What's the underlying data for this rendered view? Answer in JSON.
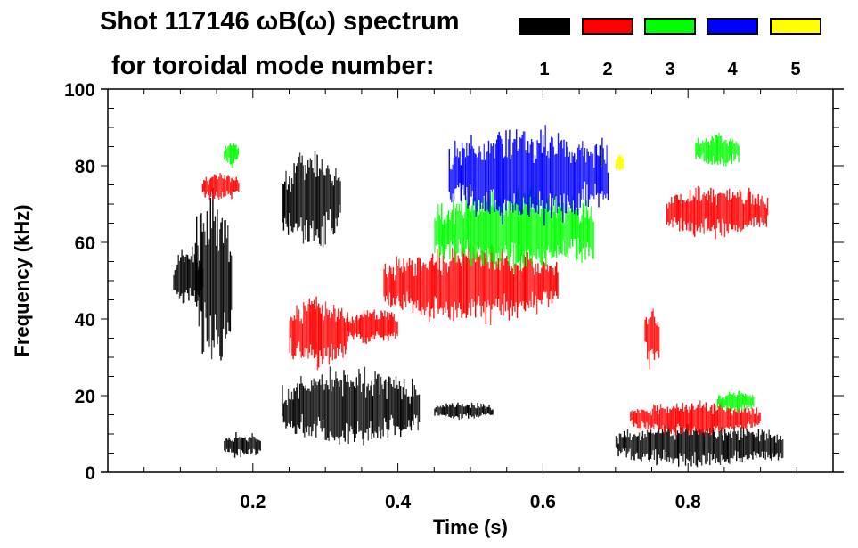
{
  "chart_data": {
    "type": "heatmap",
    "title": "Shot 117146 ωB(ω) spectrum",
    "subtitle": "for toroidal mode number:",
    "xlabel": "Time (s)",
    "ylabel": "Frequency (kHz)",
    "xlim": [
      0.0,
      1.0
    ],
    "ylim": [
      0,
      100
    ],
    "x_ticks": [
      0.2,
      0.4,
      0.6,
      0.8
    ],
    "x_tick_labels": [
      "0.2",
      "0.4",
      "0.6",
      "0.8"
    ],
    "x_minor_step": 0.05,
    "y_ticks": [
      0,
      20,
      40,
      60,
      80,
      100
    ],
    "y_tick_labels": [
      "0",
      "20",
      "40",
      "60",
      "80",
      "100"
    ],
    "y_minor_step": 5,
    "grid": false,
    "legend": {
      "placement": "top-right",
      "entries": [
        {
          "mode": "1",
          "color": "#000000"
        },
        {
          "mode": "2",
          "color": "#ff0000"
        },
        {
          "mode": "3",
          "color": "#00ff00"
        },
        {
          "mode": "4",
          "color": "#0000ff"
        },
        {
          "mode": "5",
          "color": "#ffff00"
        }
      ]
    },
    "series": [
      {
        "name": "n=1",
        "color": "#000000",
        "regions": [
          {
            "t": [
              0.09,
              0.13
            ],
            "f": [
              44,
              58
            ]
          },
          {
            "t": [
              0.12,
              0.17
            ],
            "f": [
              30,
              72
            ]
          },
          {
            "t": [
              0.16,
              0.21
            ],
            "f": [
              4,
              10
            ]
          },
          {
            "t": [
              0.24,
              0.32
            ],
            "f": [
              60,
              82
            ]
          },
          {
            "t": [
              0.24,
              0.43
            ],
            "f": [
              8,
              26
            ]
          },
          {
            "t": [
              0.7,
              0.93
            ],
            "f": [
              2,
              12
            ]
          },
          {
            "t": [
              0.45,
              0.53
            ],
            "f": [
              14,
              18
            ]
          }
        ]
      },
      {
        "name": "n=2",
        "color": "#ff0000",
        "regions": [
          {
            "t": [
              0.13,
              0.18
            ],
            "f": [
              71,
              78
            ]
          },
          {
            "t": [
              0.25,
              0.33
            ],
            "f": [
              28,
              45
            ]
          },
          {
            "t": [
              0.33,
              0.4
            ],
            "f": [
              34,
              42
            ]
          },
          {
            "t": [
              0.38,
              0.62
            ],
            "f": [
              40,
              58
            ]
          },
          {
            "t": [
              0.72,
              0.9
            ],
            "f": [
              10,
              18
            ]
          },
          {
            "t": [
              0.74,
              0.76
            ],
            "f": [
              28,
              43
            ]
          },
          {
            "t": [
              0.77,
              0.91
            ],
            "f": [
              62,
              74
            ]
          }
        ]
      },
      {
        "name": "n=3",
        "color": "#00ff00",
        "regions": [
          {
            "t": [
              0.16,
              0.18
            ],
            "f": [
              80,
              86
            ]
          },
          {
            "t": [
              0.45,
              0.67
            ],
            "f": [
              53,
              73
            ]
          },
          {
            "t": [
              0.81,
              0.87
            ],
            "f": [
              80,
              88
            ]
          },
          {
            "t": [
              0.84,
              0.89
            ],
            "f": [
              16,
              21
            ]
          }
        ]
      },
      {
        "name": "n=4",
        "color": "#0000ff",
        "regions": [
          {
            "t": [
              0.47,
              0.69
            ],
            "f": [
              66,
              89
            ]
          }
        ]
      },
      {
        "name": "n=5",
        "color": "#ffff00",
        "regions": [
          {
            "t": [
              0.7,
              0.71
            ],
            "f": [
              78,
              83
            ]
          }
        ]
      }
    ]
  }
}
